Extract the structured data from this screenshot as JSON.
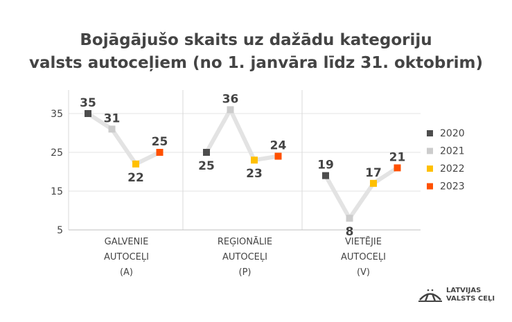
{
  "chart_data": {
    "type": "line",
    "title_lines": [
      "Bojāgājušo skaits uz dažādu kategoriju",
      "valsts autoceļiem (no 1. janvāra līdz 31. oktobrim)"
    ],
    "categories": [
      [
        "GALVENIE",
        "AUTOCEĻI",
        "(A)"
      ],
      [
        "REĢIONĀLIE",
        "AUTOCEĻI",
        "(P)"
      ],
      [
        "VIETĒJIE",
        "AUTOCEĻI",
        "(V)"
      ]
    ],
    "series": [
      {
        "name": "2020",
        "color": "#4d4d4d",
        "values": [
          35,
          25,
          19
        ]
      },
      {
        "name": "2021",
        "color": "#cccccc",
        "values": [
          31,
          36,
          8
        ]
      },
      {
        "name": "2022",
        "color": "#ffc000",
        "values": [
          22,
          23,
          17
        ]
      },
      {
        "name": "2023",
        "color": "#ff5000",
        "values": [
          25,
          24,
          21
        ]
      }
    ],
    "label_below": [
      [
        false,
        false,
        true,
        false
      ],
      [
        true,
        false,
        true,
        false
      ],
      [
        false,
        true,
        false,
        false
      ]
    ],
    "yticks": [
      5,
      15,
      25,
      35
    ],
    "ylim": [
      5,
      37
    ],
    "legend": "right"
  },
  "logo": {
    "line1": "LATVIJAS",
    "line2": "VALSTS CEĻI"
  }
}
